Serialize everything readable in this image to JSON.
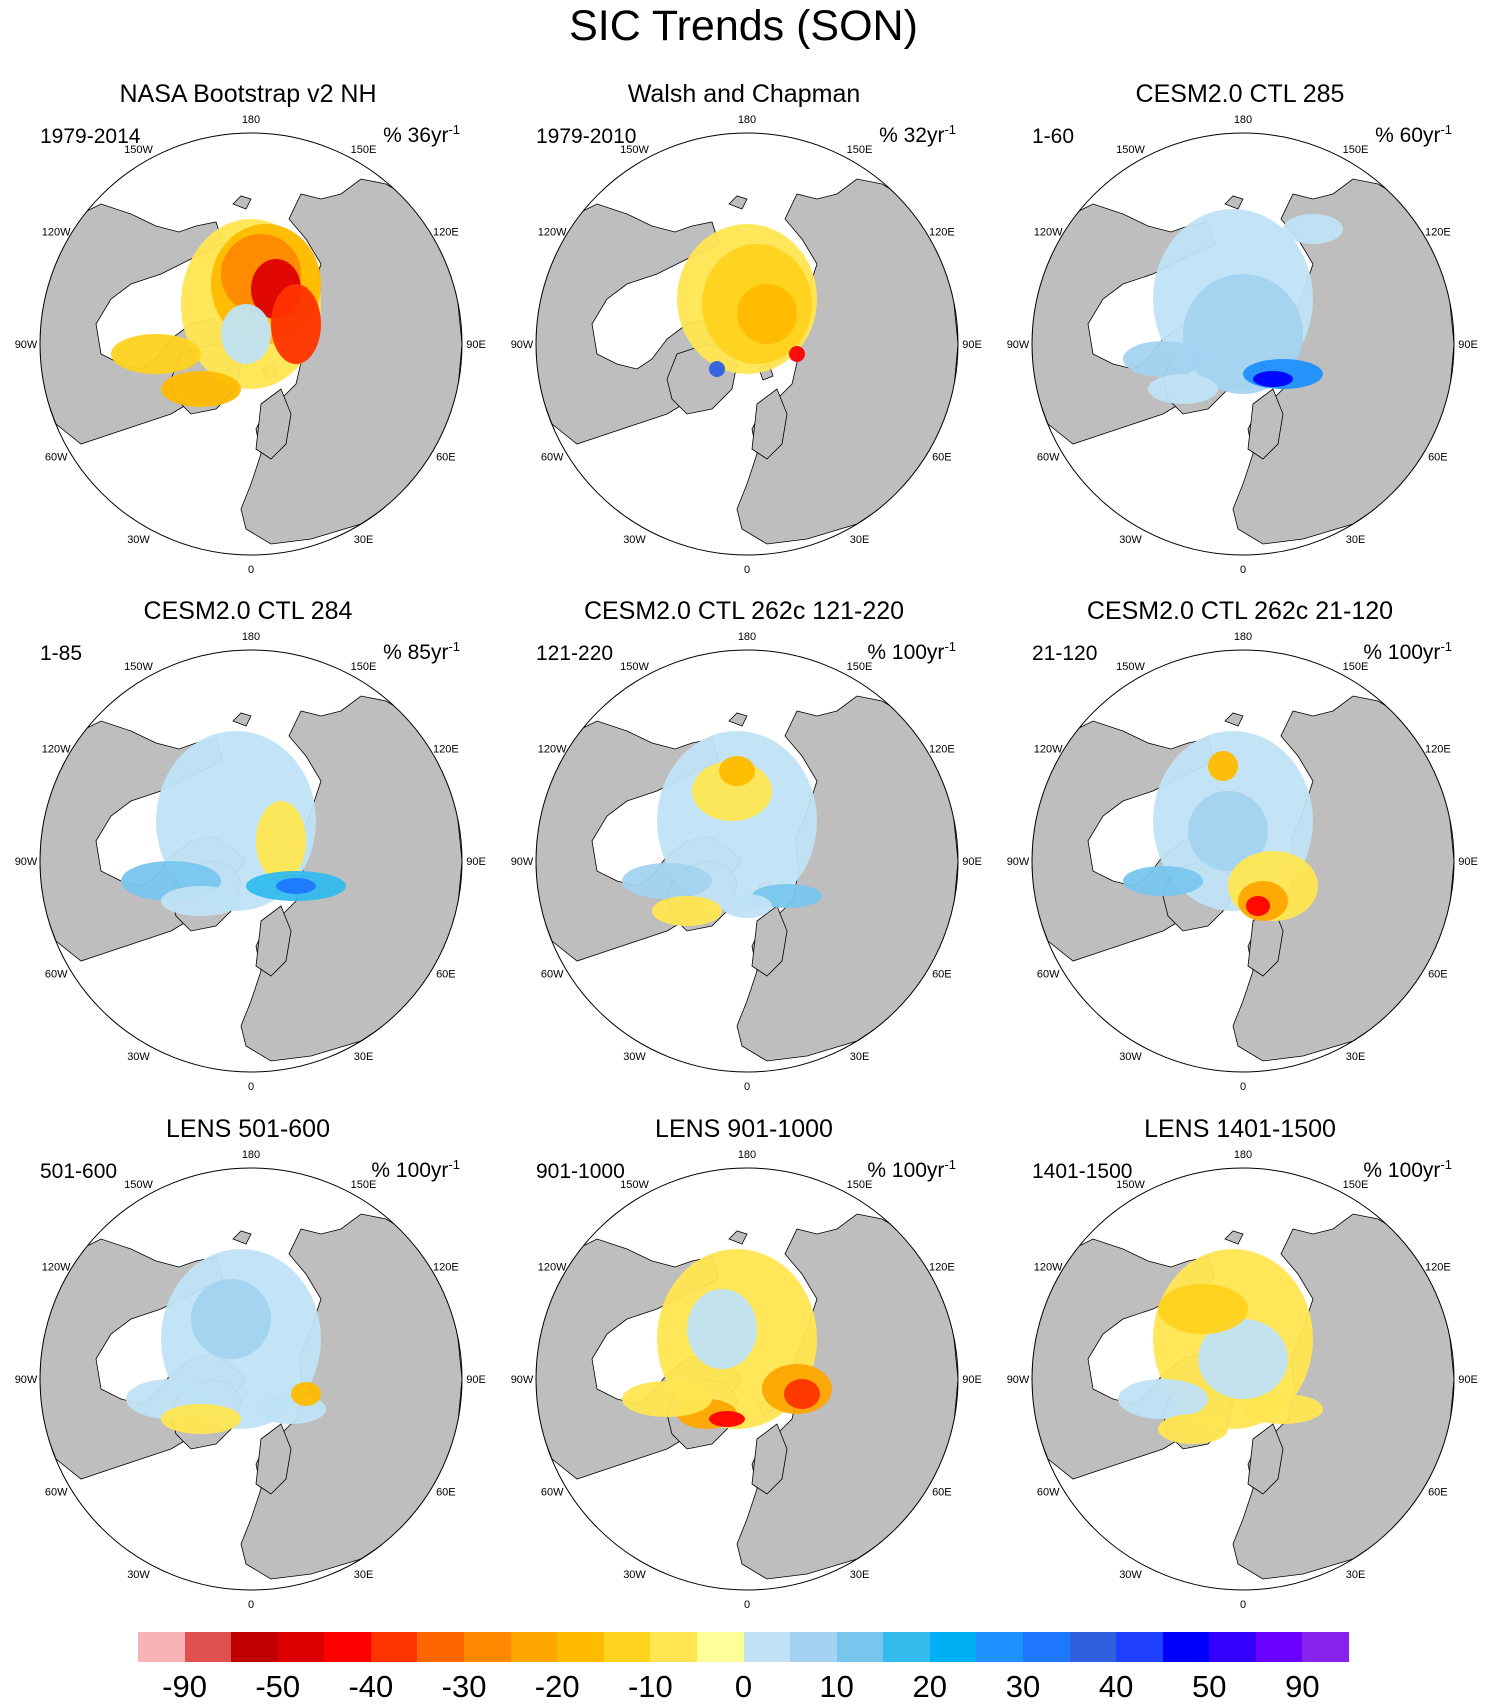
{
  "title": "SIC Trends (SON)",
  "panels": [
    {
      "title": "NASA Bootstrap v2 NH",
      "period": "1979-2014",
      "units": "% 36yr",
      "units_exp": "-1",
      "pattern": "obs-decline"
    },
    {
      "title": "Walsh and Chapman",
      "period": "1979-2010",
      "units": "% 32yr",
      "units_exp": "-1",
      "pattern": "obs-decline-2"
    },
    {
      "title": "CESM2.0 CTL 285",
      "period": "1-60",
      "units": "% 60yr",
      "units_exp": "-1",
      "pattern": "increase"
    },
    {
      "title": "CESM2.0 CTL 284",
      "period": "1-85",
      "units": "% 85yr",
      "units_exp": "-1",
      "pattern": "increase-2"
    },
    {
      "title": "CESM2.0 CTL 262c 121-220",
      "period": "121-220",
      "units": "% 100yr",
      "units_exp": "-1",
      "pattern": "mixed"
    },
    {
      "title": "CESM2.0 CTL 262c 21-120",
      "period": "21-120",
      "units": "% 100yr",
      "units_exp": "-1",
      "pattern": "mixed-2"
    },
    {
      "title": "LENS 501-600",
      "period": "501-600",
      "units": "% 100yr",
      "units_exp": "-1",
      "pattern": "increase-3"
    },
    {
      "title": "LENS 901-1000",
      "period": "901-1000",
      "units": "% 100yr",
      "units_exp": "-1",
      "pattern": "decline-3"
    },
    {
      "title": "LENS 1401-1500",
      "period": "1401-1500",
      "units": "% 100yr",
      "units_exp": "-1",
      "pattern": "mixed-3"
    }
  ],
  "lon_labels": [
    "180",
    "150E",
    "120E",
    "90E",
    "60E",
    "30E",
    "0",
    "30W",
    "60W",
    "90W",
    "120W",
    "150W"
  ],
  "colorbar": {
    "colors": [
      "#f8b4b4",
      "#e05050",
      "#c00000",
      "#dd0000",
      "#ff0000",
      "#ff3300",
      "#ff6600",
      "#ff8800",
      "#ffa500",
      "#ffbb00",
      "#ffd21e",
      "#ffe650",
      "#ffff99",
      "#bfe3f5",
      "#a3d3f0",
      "#78c6ee",
      "#33bbee",
      "#00b0f5",
      "#1e90ff",
      "#1e78ff",
      "#3060e0",
      "#2040ff",
      "#0000ff",
      "#3300ff",
      "#6a00ff",
      "#8822ee"
    ],
    "labels": [
      "-90",
      "-50",
      "-40",
      "-30",
      "-20",
      "-10",
      "0",
      "10",
      "20",
      "30",
      "40",
      "50",
      "90"
    ]
  }
}
